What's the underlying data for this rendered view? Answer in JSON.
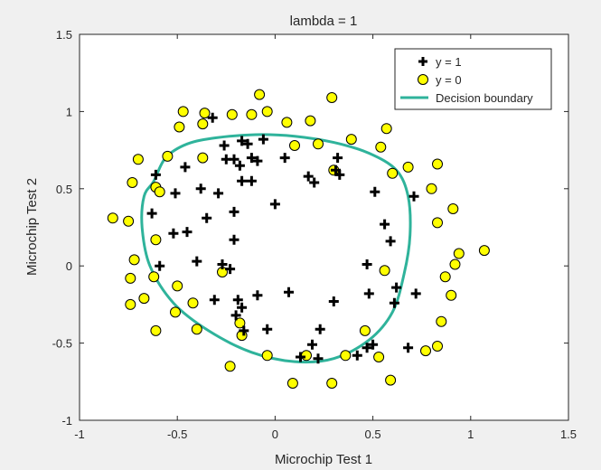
{
  "chart_data": {
    "type": "scatter",
    "title": "lambda = 1",
    "xlabel": "Microchip Test 1",
    "ylabel": "Microchip Test 2",
    "xlim": [
      -1,
      1.5
    ],
    "ylim": [
      -1,
      1.5
    ],
    "xticks": [
      "-1",
      "-0.5",
      "0",
      "0.5",
      "1",
      "1.5"
    ],
    "yticks": [
      "-1",
      "-0.5",
      "0",
      "0.5",
      "1",
      "1.5"
    ],
    "grid": false,
    "legend_position": "top-right",
    "series": [
      {
        "name": "y = 1",
        "marker": "plus",
        "color": "#000000",
        "points": [
          [
            0.05,
            0.7
          ],
          [
            -0.09,
            0.68
          ],
          [
            -0.21,
            0.69
          ],
          [
            -0.38,
            0.5
          ],
          [
            -0.51,
            0.47
          ],
          [
            -0.52,
            0.21
          ],
          [
            -0.4,
            0.03
          ],
          [
            -0.31,
            -0.22
          ],
          [
            -0.27,
            0.01
          ],
          [
            -0.2,
            -0.32
          ],
          [
            -0.17,
            0.55
          ],
          [
            -0.12,
            0.55
          ],
          [
            -0.21,
            0.35
          ],
          [
            -0.21,
            0.17
          ],
          [
            -0.09,
            -0.19
          ],
          [
            -0.23,
            -0.02
          ],
          [
            -0.04,
            -0.41
          ],
          [
            0.07,
            -0.17
          ],
          [
            0.19,
            -0.51
          ],
          [
            0.23,
            -0.41
          ],
          [
            0.17,
            0.58
          ],
          [
            0.2,
            0.54
          ],
          [
            0.31,
            0.62
          ],
          [
            0.33,
            0.59
          ],
          [
            0.51,
            0.48
          ],
          [
            0.56,
            0.27
          ],
          [
            0.59,
            0.16
          ],
          [
            0.62,
            -0.14
          ],
          [
            0.61,
            -0.24
          ],
          [
            0.48,
            -0.18
          ],
          [
            0.47,
            0.01
          ],
          [
            0.5,
            -0.51
          ],
          [
            0.47,
            -0.53
          ],
          [
            0.68,
            -0.53
          ],
          [
            0.72,
            -0.18
          ],
          [
            0.71,
            0.45
          ],
          [
            0.32,
            0.7
          ],
          [
            0.3,
            -0.23
          ],
          [
            0.42,
            -0.58
          ],
          [
            -0.14,
            0.79
          ],
          [
            -0.26,
            0.78
          ],
          [
            -0.46,
            0.64
          ],
          [
            -0.61,
            0.59
          ],
          [
            -0.63,
            0.34
          ],
          [
            -0.59,
            0.0
          ],
          [
            -0.45,
            0.22
          ],
          [
            -0.35,
            0.31
          ],
          [
            -0.29,
            0.47
          ],
          [
            -0.17,
            0.81
          ],
          [
            -0.06,
            0.82
          ],
          [
            -0.19,
            -0.22
          ],
          [
            -0.16,
            -0.42
          ],
          [
            -0.12,
            0.7
          ],
          [
            -0.25,
            0.69
          ],
          [
            -0.18,
            0.65
          ],
          [
            0.0,
            0.4
          ],
          [
            -0.32,
            0.96
          ],
          [
            0.22,
            -0.6
          ],
          [
            0.13,
            -0.59
          ],
          [
            -0.17,
            -0.27
          ]
        ]
      },
      {
        "name": "y = 0",
        "marker": "circle",
        "color": "#ffff00",
        "points": [
          [
            -0.83,
            0.31
          ],
          [
            -0.75,
            0.29
          ],
          [
            -0.73,
            0.54
          ],
          [
            -0.72,
            0.04
          ],
          [
            -0.74,
            -0.08
          ],
          [
            -0.67,
            -0.21
          ],
          [
            -0.74,
            -0.25
          ],
          [
            -0.61,
            -0.42
          ],
          [
            -0.51,
            -0.3
          ],
          [
            -0.5,
            -0.13
          ],
          [
            -0.42,
            -0.24
          ],
          [
            -0.4,
            -0.41
          ],
          [
            -0.23,
            -0.65
          ],
          [
            -0.18,
            -0.37
          ],
          [
            -0.17,
            -0.45
          ],
          [
            -0.04,
            -0.58
          ],
          [
            0.09,
            -0.76
          ],
          [
            0.16,
            -0.58
          ],
          [
            0.29,
            -0.76
          ],
          [
            0.36,
            -0.58
          ],
          [
            0.46,
            -0.42
          ],
          [
            0.53,
            -0.59
          ],
          [
            0.59,
            -0.74
          ],
          [
            0.77,
            -0.55
          ],
          [
            0.83,
            -0.52
          ],
          [
            0.85,
            -0.36
          ],
          [
            0.9,
            -0.19
          ],
          [
            0.87,
            -0.07
          ],
          [
            0.92,
            0.01
          ],
          [
            0.94,
            0.08
          ],
          [
            1.07,
            0.1
          ],
          [
            0.91,
            0.37
          ],
          [
            0.83,
            0.28
          ],
          [
            0.8,
            0.5
          ],
          [
            0.83,
            0.66
          ],
          [
            0.68,
            0.64
          ],
          [
            0.6,
            0.6
          ],
          [
            0.54,
            0.77
          ],
          [
            0.39,
            0.82
          ],
          [
            0.57,
            0.89
          ],
          [
            0.22,
            0.79
          ],
          [
            0.3,
            0.62
          ],
          [
            0.1,
            0.78
          ],
          [
            0.18,
            0.94
          ],
          [
            0.06,
            0.93
          ],
          [
            -0.08,
            1.11
          ],
          [
            -0.04,
            1.0
          ],
          [
            -0.12,
            0.98
          ],
          [
            -0.22,
            0.98
          ],
          [
            -0.36,
            0.99
          ],
          [
            -0.37,
            0.7
          ],
          [
            -0.47,
            1.0
          ],
          [
            -0.49,
            0.9
          ],
          [
            -0.61,
            0.51
          ],
          [
            -0.59,
            0.48
          ],
          [
            -0.55,
            0.71
          ],
          [
            -0.7,
            0.69
          ],
          [
            -0.61,
            0.17
          ],
          [
            -0.62,
            -0.07
          ],
          [
            -0.27,
            -0.04
          ],
          [
            0.29,
            1.09
          ],
          [
            0.56,
            -0.03
          ],
          [
            -0.37,
            0.92
          ]
        ]
      }
    ],
    "boundary_label": "Decision boundary",
    "boundary_color": "#2fb39b",
    "boundary_points": [
      [
        -0.62,
        0.55
      ],
      [
        -0.56,
        0.7
      ],
      [
        -0.45,
        0.79
      ],
      [
        -0.3,
        0.83
      ],
      [
        -0.1,
        0.85
      ],
      [
        0.1,
        0.84
      ],
      [
        0.3,
        0.8
      ],
      [
        0.48,
        0.73
      ],
      [
        0.62,
        0.62
      ],
      [
        0.68,
        0.45
      ],
      [
        0.69,
        0.2
      ],
      [
        0.66,
        -0.05
      ],
      [
        0.6,
        -0.3
      ],
      [
        0.48,
        -0.48
      ],
      [
        0.3,
        -0.6
      ],
      [
        0.1,
        -0.62
      ],
      [
        -0.12,
        -0.56
      ],
      [
        -0.34,
        -0.42
      ],
      [
        -0.52,
        -0.24
      ],
      [
        -0.64,
        0.0
      ],
      [
        -0.68,
        0.25
      ],
      [
        -0.67,
        0.45
      ],
      [
        -0.62,
        0.55
      ]
    ]
  }
}
